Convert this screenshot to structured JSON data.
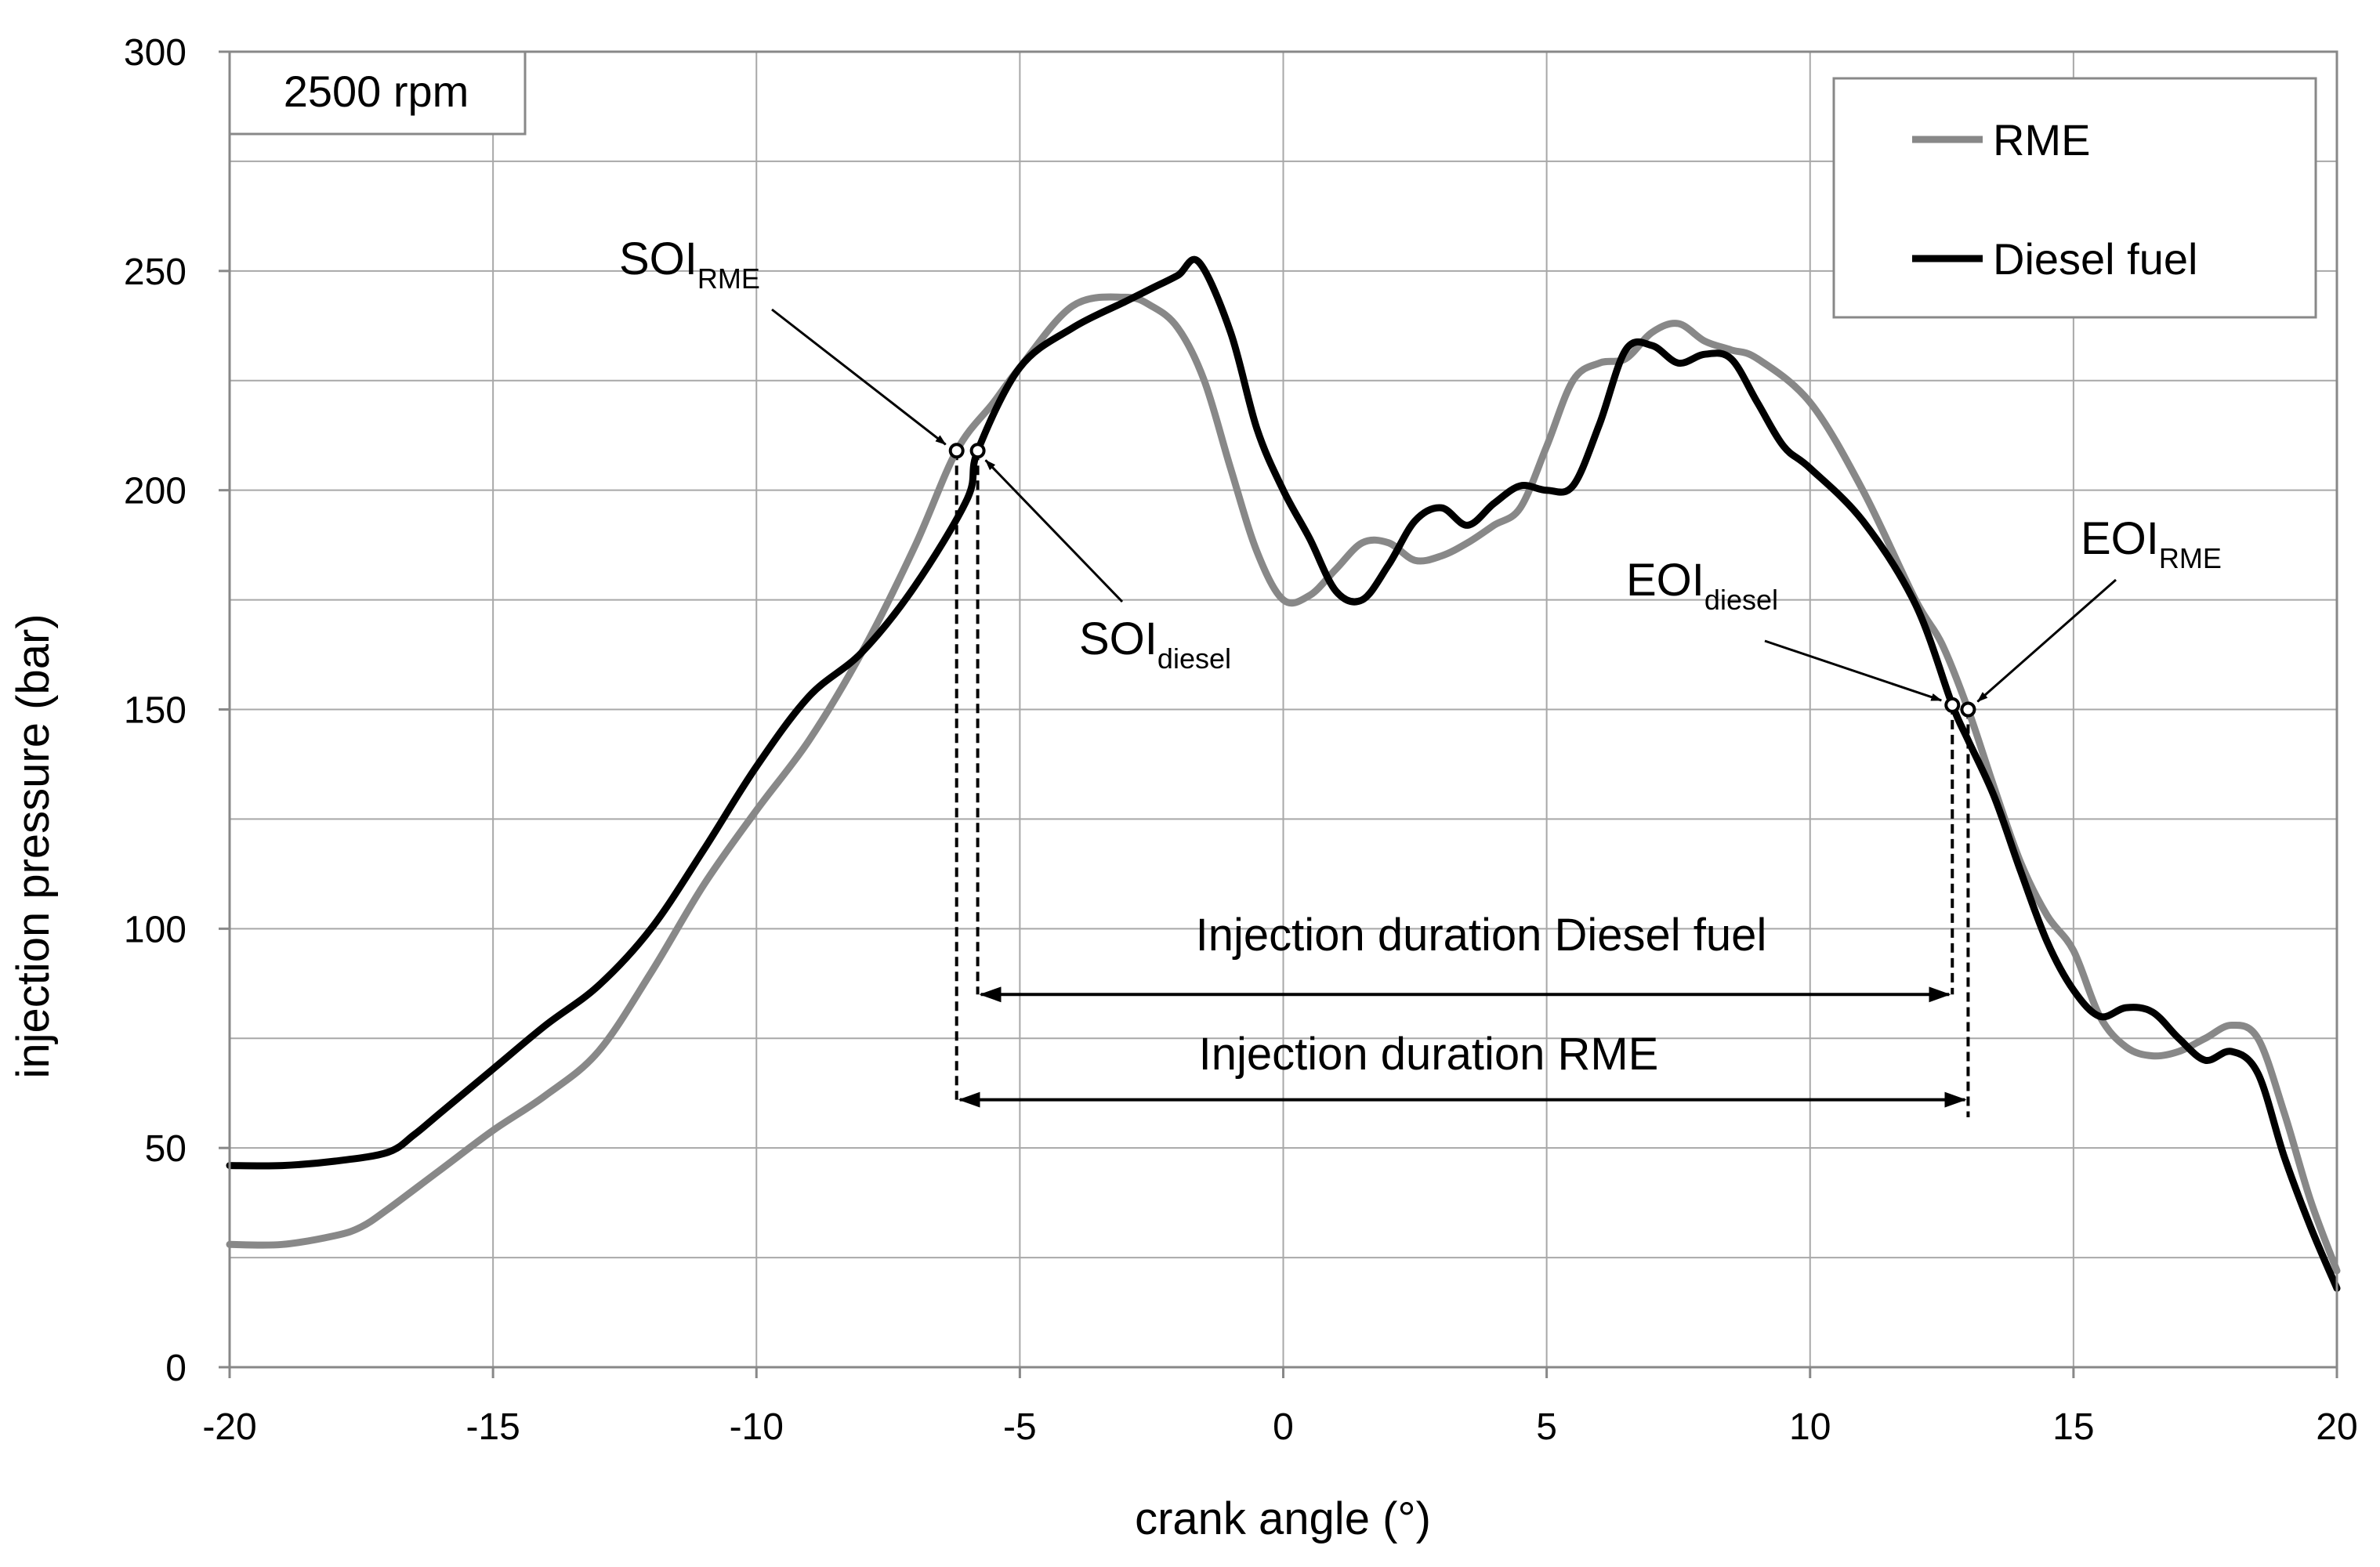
{
  "chart_data": {
    "type": "line",
    "xlabel": "crank angle (°)",
    "ylabel": "injection pressure (bar)",
    "xlim": [
      -20,
      20
    ],
    "ylim": [
      0,
      300
    ],
    "x_ticks": [
      -20,
      -15,
      -10,
      -5,
      0,
      5,
      10,
      15,
      20
    ],
    "y_ticks": [
      0,
      50,
      100,
      150,
      200,
      250,
      300
    ],
    "x_tick_labels": [
      "-20",
      "-15",
      "-10",
      "-5",
      "0",
      "5",
      "10",
      "15",
      "20"
    ],
    "y_tick_labels": [
      "0",
      "50",
      "100",
      "150",
      "200",
      "250",
      "300"
    ],
    "grid": true,
    "minor_grid_y_step": 25,
    "speed_label": "2500 rpm",
    "legend_position": "top-right",
    "series": [
      {
        "name": "RME",
        "color": "#888888",
        "x": [
          -20,
          -19,
          -18,
          -17.5,
          -17,
          -16,
          -15,
          -14,
          -13,
          -12,
          -11,
          -10,
          -9,
          -8,
          -7,
          -6.2,
          -5.5,
          -5,
          -4,
          -3,
          -2.5,
          -2,
          -1.5,
          -1,
          -0.5,
          0,
          0.5,
          1,
          1.5,
          2,
          2.5,
          3,
          3.5,
          4,
          4.5,
          5,
          5.5,
          6,
          6.5,
          7,
          7.5,
          8,
          8.5,
          9,
          10,
          11,
          12,
          12.5,
          13,
          13.5,
          14,
          14.5,
          15,
          15.5,
          16,
          16.5,
          17,
          17.5,
          18,
          18.5,
          19,
          19.5,
          20
        ],
        "y": [
          28,
          28,
          30,
          32,
          36,
          45,
          54,
          62,
          72,
          90,
          110,
          127,
          143,
          163,
          187,
          209,
          220,
          228,
          242,
          244,
          242,
          237,
          225,
          205,
          186,
          175,
          176,
          182,
          188,
          188,
          184,
          185,
          188,
          192,
          196,
          210,
          225,
          229,
          230,
          236,
          238,
          234,
          232,
          230,
          220,
          200,
          175,
          165,
          150,
          132,
          115,
          103,
          95,
          80,
          73,
          71,
          72,
          75,
          78,
          75,
          58,
          38,
          22
        ]
      },
      {
        "name": "Diesel fuel",
        "color": "#000000",
        "x": [
          -20,
          -19,
          -18,
          -17,
          -16.5,
          -16,
          -15,
          -14,
          -13,
          -12,
          -11,
          -10,
          -9,
          -8,
          -7,
          -6,
          -5.8,
          -5,
          -4,
          -3,
          -2.5,
          -2,
          -1.6,
          -1,
          -0.5,
          0,
          0.5,
          1,
          1.5,
          2,
          2.5,
          3,
          3.5,
          4,
          4.5,
          5,
          5.5,
          6,
          6.5,
          7,
          7.5,
          8,
          8.5,
          9,
          9.5,
          10,
          11,
          12,
          12.7,
          13,
          13.5,
          14,
          14.5,
          15,
          15.5,
          16,
          16.5,
          17,
          17.5,
          18,
          18.5,
          19,
          19.5,
          20
        ],
        "y": [
          46,
          46,
          47,
          49,
          53,
          58,
          68,
          78,
          87,
          100,
          118,
          137,
          153,
          163,
          178,
          198,
          209,
          228,
          237,
          243,
          246,
          249,
          252,
          236,
          214,
          200,
          189,
          177,
          175,
          183,
          193,
          196,
          192,
          197,
          201,
          200,
          201,
          215,
          232,
          233,
          229,
          231,
          230,
          220,
          210,
          205,
          193,
          174,
          151,
          143,
          130,
          113,
          97,
          86,
          80,
          82,
          81,
          75,
          70,
          72,
          67,
          48,
          32,
          18
        ]
      }
    ],
    "annotations": {
      "soi_rme": {
        "main": "SOI",
        "sub": "RME",
        "x": -6.2,
        "y": 209
      },
      "soi_diesel": {
        "main": "SOI",
        "sub": "diesel",
        "x": -5.8,
        "y": 209
      },
      "eoi_diesel": {
        "main": "EOI",
        "sub": "diesel",
        "x": 12.7,
        "y": 151
      },
      "eoi_rme": {
        "main": "EOI",
        "sub": "RME",
        "x": 13.0,
        "y": 150
      },
      "duration_diesel": {
        "label": "Injection duration Diesel fuel",
        "x_start": -5.8,
        "x_end": 12.7,
        "y": 85
      },
      "duration_rme": {
        "label": "Injection duration RME",
        "x_start": -6.2,
        "x_end": 13.0,
        "y": 61
      }
    }
  }
}
